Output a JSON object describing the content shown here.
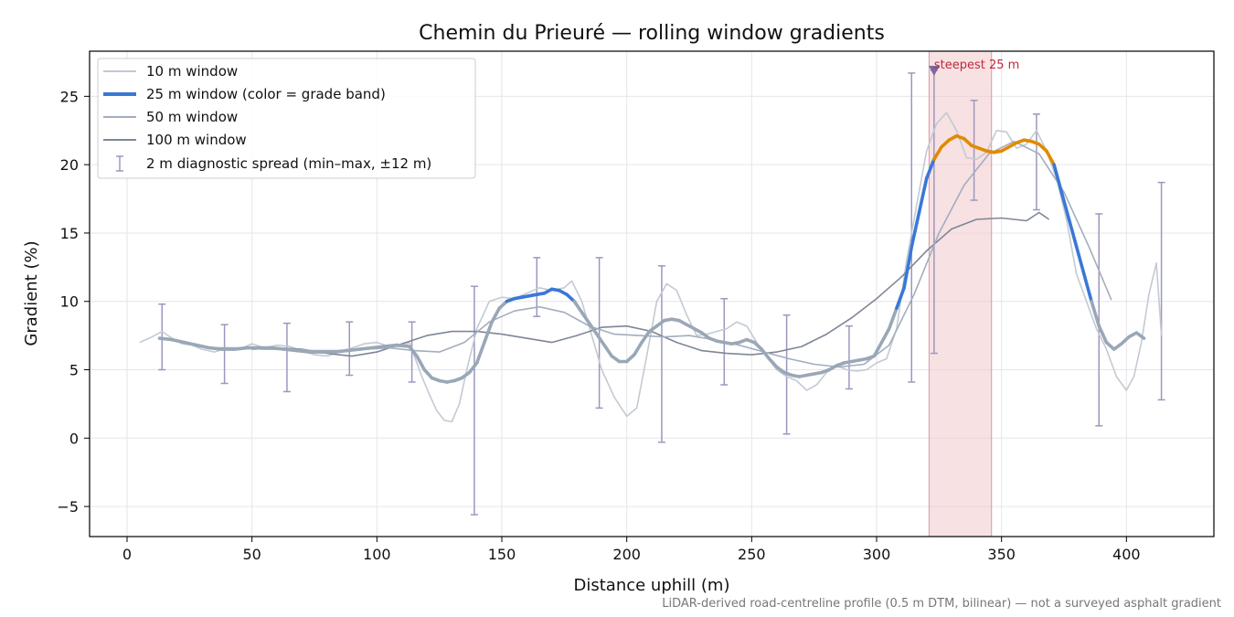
{
  "chart_data": {
    "type": "line",
    "title": "Chemin du Prieuré — rolling window gradients",
    "xlabel": "Distance uphill (m)",
    "ylabel": "Gradient (%)",
    "xlim": [
      -15,
      435
    ],
    "ylim": [
      -7.2,
      28.3
    ],
    "x_ticks": [
      0,
      50,
      100,
      150,
      200,
      250,
      300,
      350,
      400
    ],
    "y_ticks": [
      -5,
      0,
      5,
      10,
      15,
      20,
      25
    ],
    "grid": true,
    "legend_position": "upper-left",
    "footnote": "LiDAR-derived road-centreline profile (0.5 m DTM, bilinear) — not a surveyed asphalt gradient",
    "highlight": {
      "x_start": 321,
      "x_end": 346,
      "label": "steepest 25 m",
      "marker_x": 323,
      "marker_y": 26.9
    },
    "grade_band_colors": {
      "base": "#9aa7b6",
      "moderate": "#3a78d6",
      "steep": "#e08a00"
    },
    "series": [
      {
        "name": "10 m window",
        "color": "#c3cad3",
        "x": [
          5,
          10,
          14,
          18,
          22,
          26,
          30,
          35,
          40,
          45,
          50,
          55,
          60,
          65,
          70,
          75,
          80,
          85,
          90,
          95,
          100,
          105,
          110,
          113,
          115,
          118,
          121,
          124,
          127,
          130,
          133,
          136,
          140,
          145,
          150,
          155,
          160,
          165,
          170,
          175,
          178,
          182,
          186,
          190,
          195,
          200,
          204,
          208,
          212,
          216,
          220,
          224,
          228,
          232,
          236,
          240,
          244,
          248,
          252,
          256,
          260,
          264,
          268,
          272,
          276,
          280,
          284,
          288,
          292,
          296,
          300,
          304,
          308,
          312,
          316,
          320,
          324,
          328,
          332,
          336,
          340,
          344,
          348,
          352,
          356,
          360,
          364,
          368,
          372,
          376,
          380,
          384,
          388,
          392,
          396,
          400,
          403,
          406,
          409,
          412,
          414
        ],
        "values": [
          7.0,
          7.4,
          7.8,
          7.3,
          6.9,
          6.8,
          6.5,
          6.3,
          6.6,
          6.5,
          6.9,
          6.6,
          6.8,
          6.7,
          6.4,
          6.1,
          6.0,
          6.3,
          6.6,
          6.9,
          7.0,
          6.7,
          6.7,
          7.0,
          6.0,
          4.5,
          3.2,
          2.0,
          1.3,
          1.2,
          2.5,
          5.0,
          8.0,
          10.0,
          10.3,
          10.2,
          10.6,
          11.0,
          10.8,
          11.0,
          11.5,
          10.0,
          7.5,
          5.0,
          3.0,
          1.6,
          2.2,
          6.0,
          10.0,
          11.3,
          10.8,
          9.0,
          7.5,
          7.6,
          7.8,
          8.0,
          8.5,
          8.2,
          7.0,
          6.0,
          5.0,
          4.5,
          4.2,
          3.5,
          3.9,
          4.8,
          5.3,
          5.0,
          4.9,
          5.0,
          5.5,
          5.8,
          8.0,
          13.0,
          17.0,
          21.0,
          23.0,
          23.8,
          22.5,
          20.5,
          20.4,
          20.9,
          22.5,
          22.4,
          21.2,
          21.5,
          22.5,
          21.0,
          19.0,
          16.0,
          12.0,
          10.0,
          8.0,
          6.5,
          4.5,
          3.5,
          4.5,
          7.0,
          10.5,
          12.8,
          7.5
        ]
      },
      {
        "name": "25 m window (color = grade band)",
        "color": "#3a78d6",
        "x": [
          13,
          18,
          23,
          28,
          33,
          38,
          43,
          48,
          53,
          58,
          63,
          68,
          73,
          78,
          83,
          88,
          93,
          98,
          103,
          108,
          113,
          116,
          119,
          122,
          125,
          128,
          131,
          134,
          137,
          140,
          143,
          146,
          149,
          152,
          155,
          158,
          161,
          164,
          167,
          170,
          173,
          176,
          179,
          182,
          185,
          188,
          191,
          194,
          197,
          200,
          203,
          206,
          209,
          212,
          215,
          218,
          221,
          224,
          227,
          230,
          233,
          236,
          239,
          242,
          245,
          248,
          251,
          254,
          257,
          260,
          263,
          266,
          269,
          272,
          275,
          278,
          281,
          284,
          287,
          290,
          293,
          296,
          299,
          302,
          305,
          308,
          311,
          314,
          317,
          320,
          323,
          326,
          329,
          332,
          335,
          338,
          341,
          344,
          347,
          350,
          353,
          356,
          359,
          362,
          365,
          368,
          371,
          374,
          377,
          380,
          383,
          386,
          389,
          392,
          395,
          398,
          401,
          404,
          407
        ],
        "values": [
          7.3,
          7.2,
          7.0,
          6.8,
          6.6,
          6.5,
          6.5,
          6.6,
          6.6,
          6.6,
          6.5,
          6.4,
          6.3,
          6.3,
          6.3,
          6.4,
          6.5,
          6.6,
          6.7,
          6.8,
          6.7,
          6.0,
          5.0,
          4.4,
          4.2,
          4.1,
          4.2,
          4.4,
          4.8,
          5.5,
          7.0,
          8.5,
          9.5,
          10.0,
          10.2,
          10.3,
          10.4,
          10.5,
          10.6,
          10.9,
          10.8,
          10.5,
          10.0,
          9.2,
          8.4,
          7.6,
          6.8,
          6.0,
          5.6,
          5.6,
          6.1,
          7.0,
          7.8,
          8.2,
          8.6,
          8.7,
          8.6,
          8.3,
          8.0,
          7.7,
          7.3,
          7.1,
          7.0,
          6.9,
          7.0,
          7.2,
          7.0,
          6.5,
          5.8,
          5.2,
          4.8,
          4.6,
          4.5,
          4.6,
          4.7,
          4.8,
          5.0,
          5.3,
          5.5,
          5.6,
          5.7,
          5.8,
          6.0,
          7.0,
          8.0,
          9.5,
          11.0,
          14.0,
          16.5,
          19.0,
          20.4,
          21.3,
          21.8,
          22.1,
          21.9,
          21.4,
          21.2,
          21.0,
          20.9,
          21.0,
          21.3,
          21.6,
          21.8,
          21.7,
          21.5,
          21.0,
          20.0,
          18.0,
          16.0,
          14.0,
          12.0,
          10.0,
          8.2,
          7.0,
          6.5,
          6.9,
          7.4,
          7.7,
          7.3
        ]
      },
      {
        "name": "50 m window",
        "color": "#a3adbe",
        "x": [
          26,
          35,
          45,
          55,
          65,
          75,
          85,
          95,
          105,
          115,
          125,
          135,
          145,
          155,
          165,
          175,
          185,
          195,
          205,
          215,
          225,
          235,
          245,
          255,
          265,
          275,
          285,
          295,
          305,
          315,
          325,
          335,
          345,
          355,
          365,
          375,
          385,
          394
        ],
        "values": [
          6.8,
          6.6,
          6.6,
          6.5,
          6.5,
          6.4,
          6.4,
          6.5,
          6.6,
          6.4,
          6.3,
          7.0,
          8.5,
          9.3,
          9.6,
          9.2,
          8.2,
          7.6,
          7.5,
          7.4,
          7.5,
          7.2,
          6.8,
          6.3,
          5.8,
          5.4,
          5.2,
          5.4,
          6.8,
          10.5,
          15.0,
          18.5,
          20.8,
          21.7,
          20.8,
          18.0,
          14.0,
          10.1
        ]
      },
      {
        "name": "100 m window",
        "color": "#7e8696",
        "x": [
          50,
          60,
          70,
          80,
          90,
          100,
          110,
          120,
          130,
          140,
          150,
          160,
          170,
          180,
          190,
          200,
          210,
          220,
          230,
          240,
          250,
          260,
          270,
          280,
          290,
          300,
          310,
          320,
          330,
          340,
          350,
          360,
          365,
          369
        ],
        "values": [
          6.5,
          6.6,
          6.5,
          6.2,
          6.0,
          6.3,
          6.9,
          7.5,
          7.8,
          7.8,
          7.6,
          7.3,
          7.0,
          7.5,
          8.1,
          8.2,
          7.8,
          7.0,
          6.4,
          6.2,
          6.1,
          6.3,
          6.7,
          7.6,
          8.8,
          10.2,
          11.8,
          13.7,
          15.3,
          16.0,
          16.1,
          15.9,
          16.5,
          16.0
        ]
      }
    ],
    "error_bars": {
      "name": "2 m diagnostic spread (min–max, ±12 m)",
      "color": "#9d97bf",
      "points": [
        {
          "x": 14,
          "min": 5.0,
          "max": 9.8
        },
        {
          "x": 39,
          "min": 4.0,
          "max": 8.3
        },
        {
          "x": 64,
          "min": 3.4,
          "max": 8.4
        },
        {
          "x": 89,
          "min": 4.6,
          "max": 8.5
        },
        {
          "x": 114,
          "min": 4.1,
          "max": 8.5
        },
        {
          "x": 139,
          "min": -5.6,
          "max": 11.1
        },
        {
          "x": 164,
          "min": 8.9,
          "max": 13.2
        },
        {
          "x": 189,
          "min": 2.2,
          "max": 13.2
        },
        {
          "x": 214,
          "min": -0.3,
          "max": 12.6
        },
        {
          "x": 239,
          "min": 3.9,
          "max": 10.2
        },
        {
          "x": 264,
          "min": 0.3,
          "max": 9.0
        },
        {
          "x": 289,
          "min": 3.6,
          "max": 8.2
        },
        {
          "x": 314,
          "min": 4.1,
          "max": 26.7
        },
        {
          "x": 323,
          "min": 6.2,
          "max": 26.9
        },
        {
          "x": 339,
          "min": 17.4,
          "max": 24.7
        },
        {
          "x": 364,
          "min": 16.7,
          "max": 23.7
        },
        {
          "x": 389,
          "min": 0.9,
          "max": 16.4
        },
        {
          "x": 414,
          "min": 2.8,
          "max": 18.7
        }
      ]
    }
  }
}
